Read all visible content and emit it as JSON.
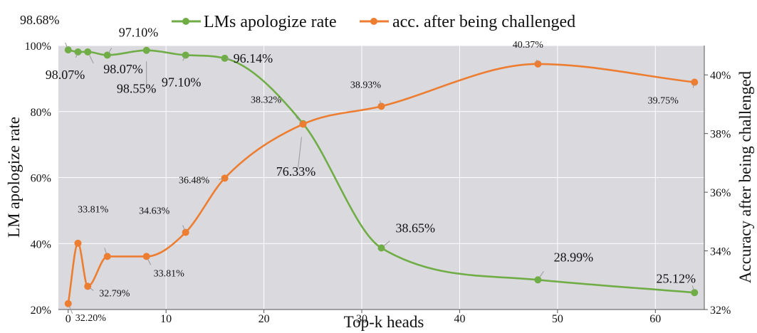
{
  "chart_data": {
    "type": "line",
    "xlabel": "Top-k heads",
    "ylabel_left": "LM apologize rate",
    "ylabel_right": "Accuracy after being challenged",
    "x_ticks": [
      "0",
      "10",
      "20",
      "30",
      "40",
      "50",
      "60"
    ],
    "y_left_ticks": [
      "20%",
      "40%",
      "60%",
      "80%",
      "100%"
    ],
    "y_right_ticks": [
      "32%",
      "34%",
      "36%",
      "38%",
      "40%"
    ],
    "xlim": [
      -1,
      65
    ],
    "ylim_left": [
      20,
      100
    ],
    "ylim_right": [
      32,
      41
    ],
    "legend_position": "top",
    "series": [
      {
        "name": "LMs apologize rate",
        "axis": "left",
        "color": "#70ad47",
        "points": [
          {
            "x": 0,
            "y": 98.68,
            "label": "98.68%"
          },
          {
            "x": 1,
            "y": 98.07,
            "label": "98.07%"
          },
          {
            "x": 2,
            "y": 98.07,
            "label": "98.07%"
          },
          {
            "x": 4,
            "y": 97.1,
            "label": "97.10%"
          },
          {
            "x": 8,
            "y": 98.55,
            "label": "98.55%"
          },
          {
            "x": 12,
            "y": 97.1,
            "label": "97.10%"
          },
          {
            "x": 16,
            "y": 96.14,
            "label": "96.14%"
          },
          {
            "x": 24,
            "y": 76.33,
            "label": "76.33%"
          },
          {
            "x": 32,
            "y": 38.65,
            "label": "38.65%"
          },
          {
            "x": 48,
            "y": 28.99,
            "label": "28.99%"
          },
          {
            "x": 64,
            "y": 25.12,
            "label": "25.12%"
          }
        ]
      },
      {
        "name": "acc. after being challenged",
        "axis": "right",
        "color": "#ed7d31",
        "points": [
          {
            "x": 0,
            "y": 32.2,
            "label": "32.20%"
          },
          {
            "x": 1,
            "y": 34.26,
            "label": ""
          },
          {
            "x": 2,
            "y": 32.79,
            "label": "32.79%"
          },
          {
            "x": 4,
            "y": 33.81,
            "label": "33.81%"
          },
          {
            "x": 8,
            "y": 33.81,
            "label": "33.81%"
          },
          {
            "x": 12,
            "y": 34.63,
            "label": "34.63%"
          },
          {
            "x": 16,
            "y": 36.48,
            "label": "36.48%"
          },
          {
            "x": 24,
            "y": 38.32,
            "label": "38.32%"
          },
          {
            "x": 32,
            "y": 38.93,
            "label": "38.93%"
          },
          {
            "x": 48,
            "y": 40.37,
            "label": "40.37%"
          },
          {
            "x": 64,
            "y": 39.75,
            "label": "39.75%"
          }
        ]
      }
    ]
  }
}
